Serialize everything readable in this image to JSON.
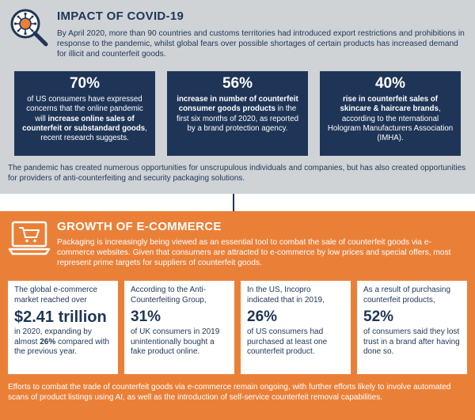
{
  "colors": {
    "navy": "#1f3557",
    "gray": "#cfd3d6",
    "orange": "#ea8038",
    "white": "#ffffff"
  },
  "icons": {
    "covid": "magnifier-virus-icon",
    "ecommerce": "laptop-cart-icon"
  },
  "covid": {
    "title": "IMPACT OF COVID-19",
    "intro": "By April 2020, more than 90 countries and customs territories had introduced export restrictions and prohibitions in response to the pandemic, whilst global fears over possible shortages of certain products has increased demand for illicit and counterfeit goods.",
    "stats": [
      {
        "value": "70%",
        "a": "of US consumers have expressed concerns that the online pandemic will ",
        "b": "increase online sales of counterfeit or substandard goods",
        "c": ", recent research suggests."
      },
      {
        "value": "56%",
        "a": "",
        "b": "increase in number of counterfeit consumer goods products",
        "c": " in the first six months of 2020, as reported by a brand protection agency."
      },
      {
        "value": "40%",
        "a": "",
        "b": "rise in counterfeit sales of skincare & haircare brands",
        "c": ", according to the nternational Hologram Manufacturers Association (IMHA)."
      }
    ],
    "note": "The pandemic has created numerous opportunities for unscrupulous individuals and companies, but has also created opportunities for providers of anti-counterfeiting and security packaging solutions."
  },
  "ecommerce": {
    "title": "GROWTH OF E-COMMERCE",
    "intro": "Packaging is increasingly being viewed as an essential tool to combat the sale of counterfeit goods via e-commerce websites. Given that consumers are attracted to e-commerce by low prices and special offers, most represent prime targets for suppliers of counterfeit goods.",
    "stats": [
      {
        "pre": "The global e-commerce market reached over",
        "value": "$2.41 trillion",
        "post_a": "in 2020, expanding by almost ",
        "post_b": "26%",
        "post_c": " compared with the previous year."
      },
      {
        "pre": "According to the Anti-Counterfeiting Group,",
        "value": "31%",
        "post_a": "of UK consumers in 2019 unintentionally bought a fake product online.",
        "post_b": "",
        "post_c": ""
      },
      {
        "pre": "In the US, Incopro indicated that in 2019,",
        "value": "26%",
        "post_a": "of US consumers had purchased at least one counterfeit product.",
        "post_b": "",
        "post_c": ""
      },
      {
        "pre": "As a result of purchasing counterfeit products,",
        "value": "52%",
        "post_a": "of consumers said they lost trust in a brand after having done so.",
        "post_b": "",
        "post_c": ""
      }
    ],
    "note": "Efforts to combat the trade of counterfeit goods via e-commerce remain ongoing, with further efforts likely to involve automated scans of product listings using AI, as well as the introduction of self-service counterfeit removal capabilities."
  }
}
